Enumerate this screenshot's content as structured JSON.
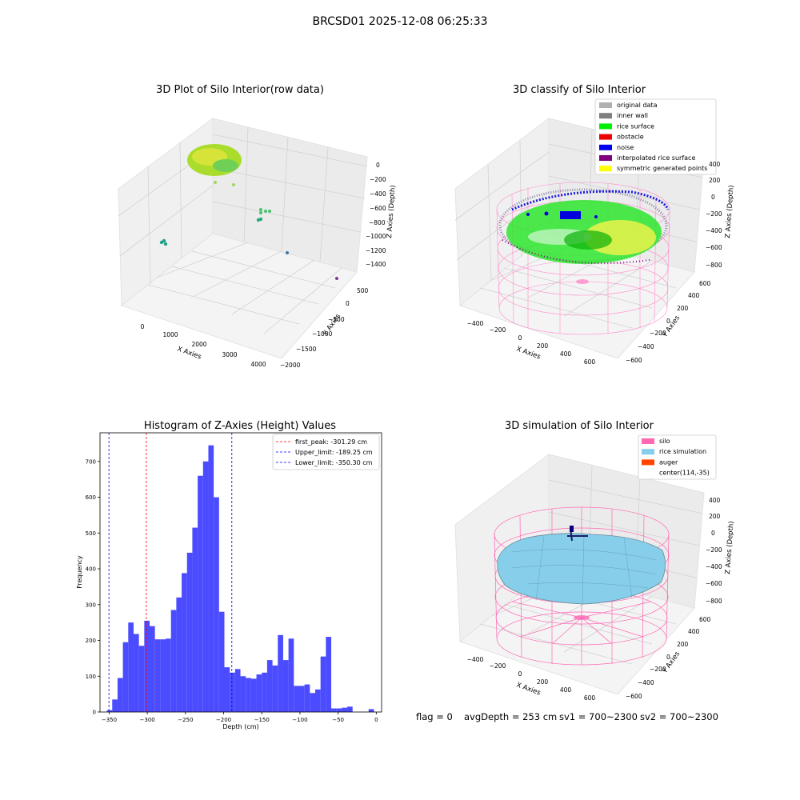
{
  "suptitle": "BRCSD01 2025-12-08 06:25:33",
  "footer": {
    "flag": "flag = 0",
    "avg_depth": "avgDepth = 253 cm",
    "sv1": "sv1 = 700~2300",
    "sv2": "sv2 = 700~2300"
  },
  "panels": {
    "raw": {
      "title": "3D Plot of Silo Interior(row data)",
      "xlabel": "X Axies",
      "ylabel": "Y Axies",
      "zlabel": "Z Axies (Depth)",
      "xticks": [
        "0",
        "1000",
        "2000",
        "3000",
        "4000"
      ],
      "yticks": [
        "500",
        "0",
        "−500",
        "−1000",
        "−1500",
        "−2000"
      ],
      "zticks": [
        "0",
        "−200",
        "−400",
        "−600",
        "−800",
        "−1000",
        "−1200",
        "−1400"
      ]
    },
    "classify": {
      "title": "3D classify of Silo Interior",
      "xlabel": "X Axies",
      "ylabel": "Y Axies",
      "zlabel": "Z Axies (Depth)",
      "xticks": [
        "−400",
        "−200",
        "0",
        "200",
        "400",
        "600"
      ],
      "yticks": [
        "600",
        "400",
        "200",
        "0",
        "−200",
        "−400",
        "−600"
      ],
      "zticks": [
        "400",
        "200",
        "0",
        "−200",
        "−400",
        "−600",
        "−800"
      ],
      "legend": [
        {
          "label": "original data",
          "color": "#b0b0b0"
        },
        {
          "label": "inner wall",
          "color": "#808080"
        },
        {
          "label": "rice surface",
          "color": "#00ee00"
        },
        {
          "label": "obstacle",
          "color": "#ee0000"
        },
        {
          "label": "noise",
          "color": "#0000ee"
        },
        {
          "label": "interpolated rice surface",
          "color": "#800080"
        },
        {
          "label": "symmetric generated points",
          "color": "#ffff00"
        }
      ]
    },
    "simulation": {
      "title": "3D simulation of Silo Interior",
      "xlabel": "X Axies",
      "ylabel": "Y Axies",
      "zlabel": "Z Axies (Depth)",
      "xticks": [
        "−400",
        "−200",
        "0",
        "200",
        "400",
        "600"
      ],
      "yticks": [
        "600",
        "400",
        "200",
        "0",
        "−200",
        "−400",
        "−600"
      ],
      "zticks": [
        "400",
        "200",
        "0",
        "−200",
        "−400",
        "−600",
        "−800"
      ],
      "legend": [
        {
          "label": "silo",
          "color": "#ff69b4"
        },
        {
          "label": "rice simulation",
          "color": "#87ceeb"
        },
        {
          "label": "auger",
          "color": "#ff4500"
        },
        {
          "label": "center(114,-35)",
          "color": ""
        }
      ]
    }
  },
  "chart_data": {
    "type": "bar",
    "title": "Histogram of Z-Axies (Height) Values",
    "xlabel": "Depth (cm)",
    "ylabel": "Frequency",
    "xlim": [
      -362,
      7
    ],
    "ylim": [
      0,
      780
    ],
    "xticks": [
      -350,
      -300,
      -250,
      -200,
      -150,
      -100,
      -50,
      0
    ],
    "yticks": [
      0,
      100,
      200,
      300,
      400,
      500,
      600,
      700
    ],
    "bin_width": 7.0,
    "bins_start": [
      -353.0,
      -346.0,
      -339.0,
      -332.0,
      -325.0,
      -318.0,
      -311.0,
      -304.0,
      -297.0,
      -290.0,
      -283.0,
      -276.0,
      -269.0,
      -262.0,
      -255.0,
      -248.0,
      -241.0,
      -234.0,
      -227.0,
      -220.0,
      -213.0,
      -206.0,
      -199.0,
      -192.0,
      -185.0,
      -178.0,
      -171.0,
      -164.0,
      -157.0,
      -150.0,
      -143.0,
      -136.0,
      -129.0,
      -122.0,
      -115.0,
      -108.0,
      -101.0,
      -94.0,
      -87.0,
      -80.0,
      -73.0,
      -66.0,
      -59.0,
      -52.0,
      -45.0,
      -38.0,
      -31.0,
      -24.0,
      -17.0,
      -10.0,
      -3.0
    ],
    "values": [
      5,
      35,
      95,
      195,
      250,
      218,
      185,
      255,
      240,
      203,
      203,
      205,
      285,
      320,
      388,
      445,
      515,
      660,
      700,
      745,
      600,
      280,
      125,
      110,
      120,
      100,
      95,
      93,
      105,
      110,
      145,
      130,
      215,
      145,
      205,
      73,
      73,
      77,
      53,
      63,
      155,
      210,
      10,
      10,
      12,
      15,
      0,
      0,
      0,
      8,
      0
    ],
    "vlines": [
      {
        "label": "first_peak: -301.29 cm",
        "x": -301.29,
        "color": "#ff0000"
      },
      {
        "label": "Upper_limit: -189.25 cm",
        "x": -189.25,
        "color": "#0000ff"
      },
      {
        "label": "Lower_limit: -350.30 cm",
        "x": -350.3,
        "color": "#0000ff"
      }
    ],
    "bar_color": "#4b4bff",
    "legend_loc": "upper right"
  }
}
